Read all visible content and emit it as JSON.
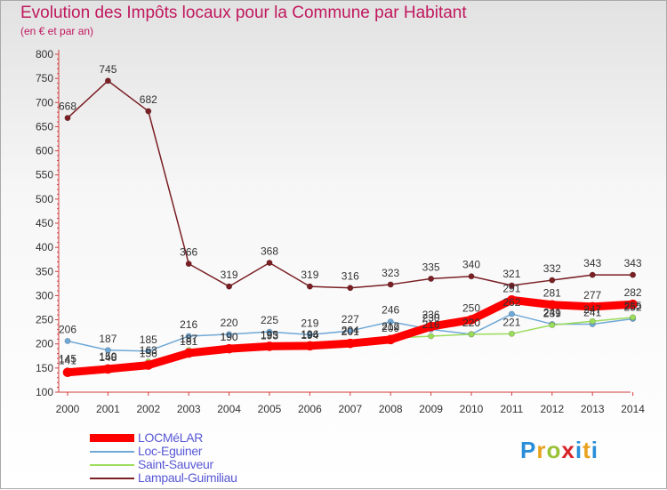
{
  "title": "Evolution des Impôts locaux pour la Commune par Habitant",
  "subtitle": "(en € et par an)",
  "brand": "Proxiti",
  "chart_data": {
    "type": "line",
    "title": "Evolution des Impôts locaux pour la Commune par Habitant",
    "ylabel": "(en € et par an)",
    "xlabel": "",
    "categories": [
      "2000",
      "2001",
      "2002",
      "2003",
      "2004",
      "2005",
      "2006",
      "2007",
      "2008",
      "2009",
      "2010",
      "2011",
      "2012",
      "2013",
      "2014"
    ],
    "ylim": [
      100,
      800
    ],
    "yticks": [
      "100",
      "150",
      "200",
      "250",
      "300",
      "350",
      "400",
      "450",
      "500",
      "550",
      "600",
      "650",
      "700",
      "750",
      "800"
    ],
    "grid": false,
    "legend_position": "bottom-left",
    "series": [
      {
        "name": "Lampaul-Guimiliau",
        "color": "#7a1f24",
        "values": [
          668,
          745,
          682,
          366,
          319,
          368,
          319,
          316,
          323,
          335,
          340,
          321,
          332,
          343,
          343
        ],
        "labels": [
          "668",
          "745",
          "682",
          "366",
          "319",
          "368",
          "319",
          "316",
          "323",
          "335",
          "340",
          "321",
          "332",
          "343",
          "343"
        ]
      },
      {
        "name": "Loc-Eguiner",
        "color": "#6fa8d6",
        "values": [
          206,
          187,
          185,
          216,
          220,
          225,
          219,
          227,
          246,
          230,
          220,
          262,
          241,
          241,
          252
        ],
        "labels": [
          "206",
          "187",
          "185",
          "216",
          "220",
          "225",
          "219",
          "227",
          "246",
          "230",
          "220",
          "262",
          "241",
          "241",
          "252"
        ]
      },
      {
        "name": "Saint-Sauveur",
        "color": "#9bdc5a",
        "values": [
          145,
          150,
          163,
          187,
          190,
          193,
          194,
          204,
          212,
          216,
          220,
          221,
          239,
          247,
          255
        ],
        "labels": [
          "145",
          "150",
          "163",
          "187",
          "190",
          "193",
          "194",
          "204",
          "212",
          "216",
          "220",
          "221",
          "239",
          "247",
          "255"
        ]
      },
      {
        "name": "LOCMéLAR",
        "color": "#ff0000",
        "values": [
          141,
          148,
          156,
          181,
          190,
          195,
          196,
          201,
          209,
          236,
          250,
          291,
          281,
          277,
          282
        ],
        "labels": [
          "141",
          "148",
          "156",
          "181",
          "190",
          "195",
          "196",
          "201",
          "209",
          "236",
          "250",
          "291",
          "281",
          "277",
          "282"
        ]
      }
    ]
  },
  "legend": [
    {
      "label": "LOCMéLAR",
      "color": "#ff0000"
    },
    {
      "label": "Loc-Eguiner",
      "color": "#6fa8d6"
    },
    {
      "label": "Saint-Sauveur",
      "color": "#9bdc5a"
    },
    {
      "label": "Lampaul-Guimiliau",
      "color": "#7a1f24"
    }
  ]
}
